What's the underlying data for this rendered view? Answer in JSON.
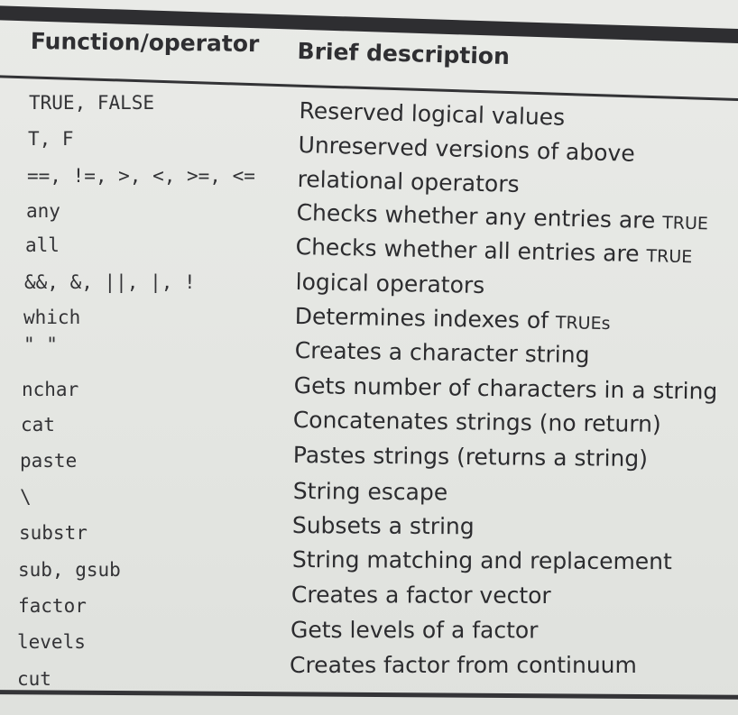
{
  "table": {
    "header": {
      "function": "Function/operator",
      "description": "Brief description"
    },
    "rows": [
      {
        "fn": "TRUE, FALSE",
        "desc": "Reserved logical values"
      },
      {
        "fn": "T, F",
        "desc": "Unreserved versions of above"
      },
      {
        "fn": "==, !=, >, <, >=, <=",
        "desc": "relational operators"
      },
      {
        "fn": "any",
        "desc": "Checks whether any entries are",
        "desc_code": "TRUE"
      },
      {
        "fn": "all",
        "desc": "Checks whether all entries are",
        "desc_code": "TRUE"
      },
      {
        "fn": "&&, &, ||, |, !",
        "desc": "logical operators"
      },
      {
        "fn": "which",
        "desc": "Determines indexes of",
        "desc_code": "TRUEs"
      },
      {
        "fn": "\"  \"",
        "desc": "Creates a character string"
      },
      {
        "fn": "nchar",
        "desc": "Gets number of characters in a string"
      },
      {
        "fn": "cat",
        "desc": "Concatenates strings (no return)"
      },
      {
        "fn": "paste",
        "desc": "Pastes strings (returns a string)"
      },
      {
        "fn": "\\",
        "desc": "String escape"
      },
      {
        "fn": "substr",
        "desc": "Subsets a string"
      },
      {
        "fn": "sub, gsub",
        "desc": "String matching and replacement"
      },
      {
        "fn": "factor",
        "desc": "Creates a factor vector"
      },
      {
        "fn": "levels",
        "desc": "Gets levels of a factor"
      },
      {
        "fn": "cut",
        "desc": "Creates factor from continuum"
      }
    ]
  }
}
